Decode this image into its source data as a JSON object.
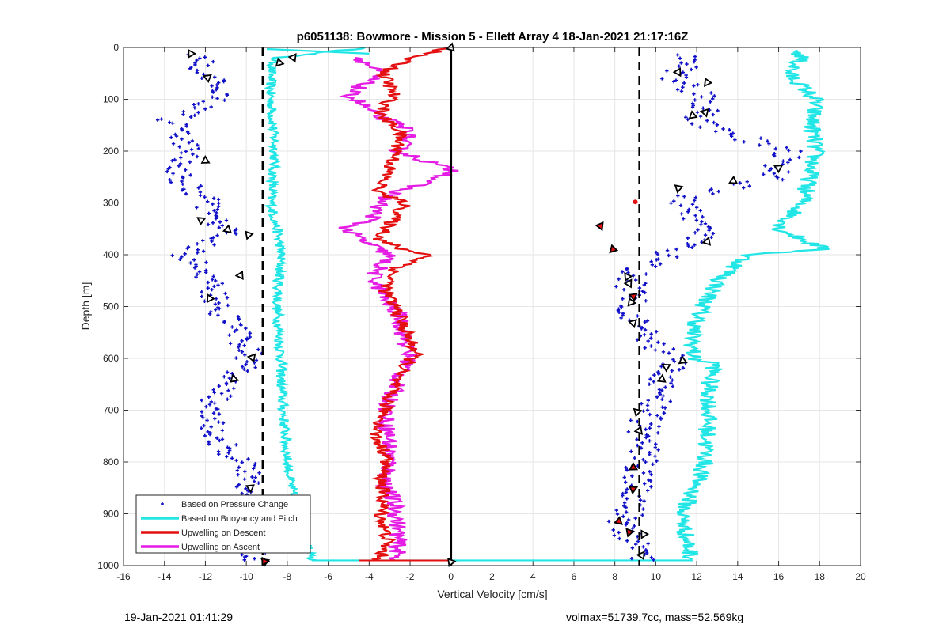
{
  "chart_data": {
    "type": "scatter",
    "title": "p6051138: Bowmore - Mission 5 - Ellett Array 4 18-Jan-2021 21:17:16Z",
    "xlabel": "Vertical Velocity [cm/s]",
    "ylabel": "Depth [m]",
    "xlim": [
      -16,
      20
    ],
    "ylim": [
      1000,
      0
    ],
    "y_reversed": true,
    "grid": true,
    "xticks": [
      -16,
      -14,
      -12,
      -10,
      -8,
      -6,
      -4,
      -2,
      0,
      2,
      4,
      6,
      8,
      10,
      12,
      14,
      16,
      18,
      20
    ],
    "yticks": [
      0,
      100,
      200,
      300,
      400,
      500,
      600,
      700,
      800,
      900,
      1000
    ],
    "legend_position": "bottom-left",
    "vertical_lines": [
      {
        "x": 0,
        "style": "solid",
        "color": "#000000"
      },
      {
        "x": -9.2,
        "style": "dashed",
        "color": "#000000"
      },
      {
        "x": 9.2,
        "style": "dashed",
        "color": "#000000"
      }
    ],
    "series": [
      {
        "name": "Based on Pressure Change",
        "kind": "markers",
        "color": "#1010c8",
        "descent_depth": [
          15,
          60,
          100,
          140,
          200,
          250,
          290,
          330,
          360,
          400,
          440,
          480,
          520,
          560,
          600,
          640,
          680,
          720,
          760,
          800,
          840,
          880,
          920,
          960,
          990
        ],
        "descent_velocity": [
          -12.5,
          -11.8,
          -11.3,
          -13.7,
          -12.8,
          -13.4,
          -12.1,
          -11.5,
          -11.0,
          -13.0,
          -11.8,
          -11.6,
          -11.0,
          -10.2,
          -9.8,
          -10.8,
          -11.6,
          -11.8,
          -11.4,
          -10.3,
          -9.8,
          -9.9,
          -10.0,
          -9.7,
          -9.5
        ],
        "ascent_depth": [
          15,
          60,
          100,
          140,
          200,
          250,
          290,
          330,
          360,
          400,
          440,
          480,
          520,
          560,
          600,
          640,
          680,
          720,
          760,
          800,
          840,
          880,
          920,
          960,
          990
        ],
        "ascent_velocity": [
          11.5,
          11.0,
          12.6,
          12.0,
          16.3,
          16.0,
          11.2,
          11.6,
          12.4,
          10.6,
          8.7,
          9.0,
          8.9,
          9.4,
          10.8,
          10.3,
          10.0,
          9.5,
          9.4,
          9.3,
          9.1,
          8.9,
          8.4,
          8.9,
          9.2
        ]
      },
      {
        "name": "Based on Buoyancy and Pitch",
        "kind": "line",
        "color": "#22e6e6",
        "descent_depth": [
          0,
          20,
          50,
          100,
          150,
          200,
          250,
          300,
          350,
          400,
          450,
          500,
          550,
          600,
          650,
          700,
          750,
          800,
          850,
          900,
          950,
          990
        ],
        "descent_velocity": [
          -4.0,
          -8.6,
          -8.8,
          -8.8,
          -8.7,
          -8.6,
          -8.7,
          -8.8,
          -8.5,
          -8.3,
          -8.4,
          -8.5,
          -8.4,
          -8.3,
          -8.3,
          -8.2,
          -8.1,
          -8.0,
          -7.8,
          -7.5,
          -7.2,
          -6.8
        ],
        "ascent_depth": [
          990,
          950,
          900,
          850,
          800,
          750,
          700,
          650,
          610,
          600,
          550,
          500,
          450,
          400,
          390,
          350,
          300,
          250,
          200,
          150,
          100,
          50,
          20,
          5
        ],
        "ascent_velocity": [
          11.8,
          11.5,
          11.3,
          11.9,
          12.4,
          12.5,
          12.6,
          12.6,
          12.9,
          11.8,
          11.8,
          12.3,
          13.1,
          14.5,
          18.3,
          16.0,
          17.2,
          17.5,
          17.8,
          17.6,
          17.8,
          16.5,
          17.1,
          16.9
        ]
      },
      {
        "name": "Upwelling on Descent",
        "kind": "line",
        "color": "#e41010",
        "depth": [
          0,
          20,
          50,
          90,
          130,
          160,
          200,
          240,
          280,
          300,
          330,
          350,
          370,
          390,
          400,
          430,
          470,
          510,
          550,
          590,
          630,
          670,
          710,
          750,
          790,
          830,
          870,
          910,
          950,
          990
        ],
        "velocity": [
          0.0,
          -2.0,
          -3.3,
          -2.8,
          -3.5,
          -2.5,
          -2.6,
          -3.1,
          -3.6,
          -2.2,
          -2.8,
          -3.1,
          -3.5,
          -2.4,
          -1.0,
          -2.8,
          -3.2,
          -2.6,
          -2.2,
          -1.7,
          -2.6,
          -3.0,
          -3.3,
          -3.7,
          -3.1,
          -3.4,
          -3.3,
          -3.4,
          -3.1,
          -3.5
        ]
      },
      {
        "name": "Upwelling on Ascent",
        "kind": "line",
        "color": "#e41ce4",
        "depth": [
          20,
          50,
          90,
          130,
          160,
          200,
          240,
          280,
          300,
          330,
          350,
          380,
          400,
          440,
          480,
          520,
          560,
          600,
          640,
          680,
          720,
          760,
          800,
          840,
          880,
          920,
          960,
          990
        ],
        "velocity": [
          -4.5,
          -3.5,
          -5.0,
          -3.7,
          -2.0,
          -2.6,
          0.3,
          -2.8,
          -3.5,
          -3.8,
          -5.2,
          -4.0,
          -3.0,
          -3.8,
          -3.3,
          -2.5,
          -2.3,
          -2.0,
          -2.6,
          -3.0,
          -3.2,
          -3.0,
          -3.0,
          -3.2,
          -2.8,
          -2.6,
          -2.6,
          -2.7
        ]
      }
    ],
    "markers": [
      {
        "symbol": "triangle",
        "color": "#000000",
        "points": [
          [
            -12.7,
            12
          ],
          [
            -7.7,
            20
          ],
          [
            -8.4,
            30
          ],
          [
            -11.9,
            58
          ],
          [
            -12.0,
            218
          ],
          [
            -12.2,
            333
          ],
          [
            -10.9,
            352
          ],
          [
            -9.9,
            362
          ],
          [
            -10.3,
            440
          ],
          [
            -11.8,
            484
          ],
          [
            -9.7,
            598
          ],
          [
            -10.6,
            640
          ],
          [
            -9.8,
            850
          ],
          [
            -9.8,
            930
          ],
          [
            -9.1,
            992
          ],
          [
            0.0,
            0
          ],
          [
            0.0,
            993
          ],
          [
            11.1,
            48
          ],
          [
            12.5,
            68
          ],
          [
            12.4,
            125
          ],
          [
            11.8,
            131
          ],
          [
            16.0,
            232
          ],
          [
            13.8,
            258
          ],
          [
            11.1,
            272
          ],
          [
            12.5,
            375
          ],
          [
            8.6,
            442
          ],
          [
            8.7,
            455
          ],
          [
            8.8,
            492
          ],
          [
            8.9,
            532
          ],
          [
            11.3,
            605
          ],
          [
            10.5,
            616
          ],
          [
            10.3,
            640
          ],
          [
            9.1,
            703
          ],
          [
            9.2,
            740
          ],
          [
            9.4,
            940
          ],
          [
            9.3,
            980
          ]
        ]
      },
      {
        "symbol": "triangle-filled",
        "color": "#e41010",
        "points": [
          [
            -9.1,
            992
          ],
          [
            7.3,
            345
          ],
          [
            7.9,
            390
          ],
          [
            8.9,
            480
          ],
          [
            8.9,
            810
          ],
          [
            8.9,
            852
          ],
          [
            8.2,
            915
          ],
          [
            8.7,
            936
          ]
        ]
      }
    ]
  },
  "footer": {
    "left": "19-Jan-2021 01:41:29",
    "right": "volmax=51739.7cc, mass=52.569kg"
  }
}
